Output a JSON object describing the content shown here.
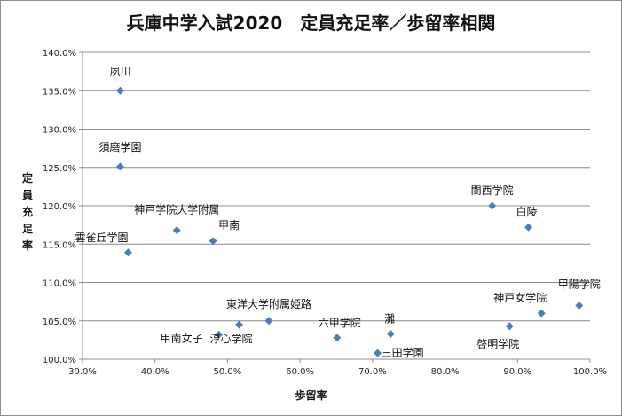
{
  "chart_data": {
    "type": "scatter",
    "title": "兵庫中学入試2020　定員充足率／歩留率相関",
    "xlabel": "歩留率",
    "ylabel": "定員充足率",
    "xlim": [
      0.3,
      1.0
    ],
    "ylim": [
      1.0,
      1.4
    ],
    "x_ticks": [
      "30.0%",
      "40.0%",
      "50.0%",
      "60.0%",
      "70.0%",
      "80.0%",
      "90.0%",
      "100.0%"
    ],
    "y_ticks": [
      "100.0%",
      "105.0%",
      "110.0%",
      "115.0%",
      "120.0%",
      "125.0%",
      "130.0%",
      "135.0%",
      "140.0%"
    ],
    "grid": "horizontal",
    "legend": "none",
    "marker_color": "#4a7ebb",
    "points": [
      {
        "label": "夙川",
        "x": 0.352,
        "y": 1.35
      },
      {
        "label": "須磨学園",
        "x": 0.352,
        "y": 1.251
      },
      {
        "label": "雲雀丘学園",
        "x": 0.363,
        "y": 1.139
      },
      {
        "label": "神戸学院大学附属",
        "x": 0.43,
        "y": 1.168
      },
      {
        "label": "甲南",
        "x": 0.48,
        "y": 1.154
      },
      {
        "label": "甲南女子",
        "x": 0.488,
        "y": 1.032
      },
      {
        "label": "淳心学院",
        "x": 0.516,
        "y": 1.045
      },
      {
        "label": "東洋大学附属姫路",
        "x": 0.557,
        "y": 1.05
      },
      {
        "label": "六甲学院",
        "x": 0.651,
        "y": 1.028
      },
      {
        "label": "三田学園",
        "x": 0.707,
        "y": 1.008
      },
      {
        "label": "灘",
        "x": 0.725,
        "y": 1.033
      },
      {
        "label": "関西学院",
        "x": 0.865,
        "y": 1.2
      },
      {
        "label": "白陵",
        "x": 0.915,
        "y": 1.172
      },
      {
        "label": "啓明学院",
        "x": 0.889,
        "y": 1.043
      },
      {
        "label": "神戸女学院",
        "x": 0.933,
        "y": 1.06
      },
      {
        "label": "甲陽学院",
        "x": 0.985,
        "y": 1.07
      }
    ]
  }
}
